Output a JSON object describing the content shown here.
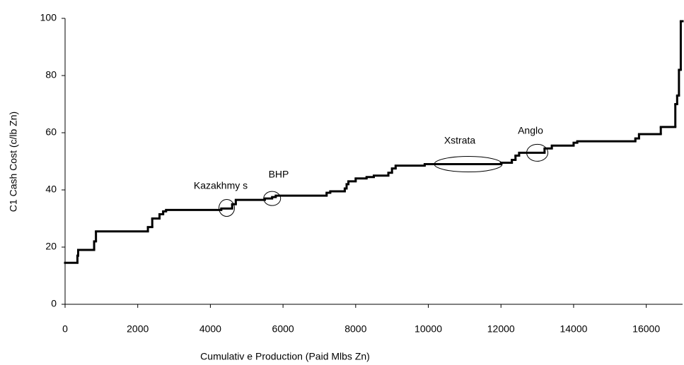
{
  "chart_data": {
    "type": "line",
    "step": "post",
    "x_label": "Cumulativ e Production (Paid Mlbs Zn)",
    "y_label": "C1 Cash Cost (c/lb Zn)",
    "x": [
      0,
      340,
      360,
      800,
      850,
      2280,
      2400,
      2600,
      2700,
      2780,
      4300,
      4600,
      4700,
      5500,
      5700,
      5800,
      7200,
      7300,
      7700,
      7750,
      7800,
      8000,
      8300,
      8500,
      8900,
      9000,
      9100,
      9900,
      12000,
      12300,
      12400,
      12500,
      13200,
      13400,
      14000,
      14100,
      15700,
      15800,
      16400,
      16800,
      16850,
      16900,
      16950
    ],
    "values": [
      14.5,
      17,
      19,
      22,
      25.5,
      27,
      30,
      31.5,
      32.5,
      33,
      33.5,
      35,
      36.5,
      37,
      37.5,
      38,
      39,
      39.5,
      40.5,
      42,
      43,
      44,
      44.5,
      45,
      46,
      47.5,
      48.5,
      49,
      49.5,
      50.5,
      52,
      53,
      54.5,
      55.5,
      56.5,
      57,
      58,
      59.5,
      62,
      70,
      73,
      82,
      99
    ],
    "color": "#000000",
    "xlim": [
      0,
      17000
    ],
    "xticks": [
      0,
      2000,
      4000,
      6000,
      8000,
      10000,
      12000,
      14000,
      16000
    ],
    "ylim": [
      0,
      100
    ],
    "yticks": [
      0,
      20,
      40,
      60,
      80,
      100
    ],
    "grid": false,
    "annotations": [
      "Kazakhmy s",
      "BHP",
      "Xstrata",
      "Anglo"
    ]
  }
}
